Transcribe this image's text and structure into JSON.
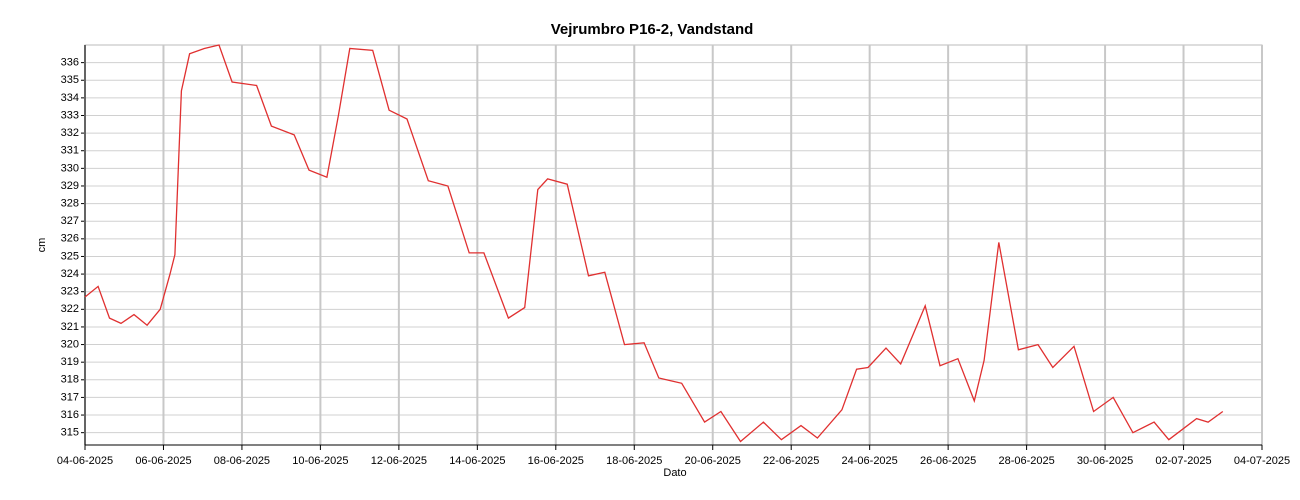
{
  "chart_data": {
    "type": "line",
    "title": "Vejrumbro P16-2, Vandstand",
    "x_label": "Dato",
    "y_label": "cm",
    "x": [
      "2025-06-04T00:00",
      "2025-06-04T08:00",
      "2025-06-04T15:00",
      "2025-06-04T22:00",
      "2025-06-05T06:00",
      "2025-06-05T14:00",
      "2025-06-05T22:00",
      "2025-06-06T04:00",
      "2025-06-06T07:00",
      "2025-06-06T11:00",
      "2025-06-06T16:00",
      "2025-06-07T01:00",
      "2025-06-07T10:00",
      "2025-06-07T18:00",
      "2025-06-08T09:00",
      "2025-06-08T18:00",
      "2025-06-09T08:00",
      "2025-06-09T17:00",
      "2025-06-10T04:00",
      "2025-06-10T11:00",
      "2025-06-10T18:00",
      "2025-06-11T08:00",
      "2025-06-11T18:00",
      "2025-06-12T05:00",
      "2025-06-12T18:00",
      "2025-06-13T06:00",
      "2025-06-13T19:00",
      "2025-06-14T04:00",
      "2025-06-14T19:00",
      "2025-06-15T05:00",
      "2025-06-15T13:00",
      "2025-06-15T19:00",
      "2025-06-16T07:00",
      "2025-06-16T20:00",
      "2025-06-17T06:00",
      "2025-06-17T18:00",
      "2025-06-18T06:00",
      "2025-06-18T15:00",
      "2025-06-19T05:00",
      "2025-06-19T19:00",
      "2025-06-20T05:00",
      "2025-06-20T17:00",
      "2025-06-21T07:00",
      "2025-06-21T18:00",
      "2025-06-22T06:00",
      "2025-06-22T16:00",
      "2025-06-23T07:00",
      "2025-06-23T16:00",
      "2025-06-23T23:00",
      "2025-06-24T10:00",
      "2025-06-24T19:00",
      "2025-06-25T10:00",
      "2025-06-25T19:00",
      "2025-06-26T06:00",
      "2025-06-26T16:00",
      "2025-06-26T22:00",
      "2025-06-27T07:00",
      "2025-06-27T19:00",
      "2025-06-28T07:00",
      "2025-06-28T16:00",
      "2025-06-29T05:00",
      "2025-06-29T17:00",
      "2025-06-30T05:00",
      "2025-06-30T17:00",
      "2025-07-01T06:00",
      "2025-07-01T15:00",
      "2025-07-02T08:00",
      "2025-07-02T15:00",
      "2025-07-03T00:00"
    ],
    "series": [
      {
        "name": "Vandstand",
        "color": "#e03030",
        "values": [
          322.7,
          323.3,
          321.5,
          321.2,
          321.7,
          321.1,
          322.0,
          324.0,
          325.1,
          334.4,
          336.5,
          336.8,
          337.0,
          334.9,
          334.7,
          332.4,
          331.9,
          329.9,
          329.5,
          333.0,
          336.8,
          336.7,
          333.3,
          332.8,
          329.3,
          329.0,
          325.2,
          325.2,
          321.5,
          322.1,
          328.8,
          329.4,
          329.1,
          323.9,
          324.1,
          320.0,
          320.1,
          318.1,
          317.8,
          315.6,
          316.2,
          314.5,
          315.6,
          314.6,
          315.4,
          314.7,
          316.3,
          318.6,
          318.7,
          319.8,
          318.9,
          322.2,
          318.8,
          319.2,
          316.8,
          319.1,
          325.8,
          319.7,
          320.0,
          318.7,
          319.9,
          316.2,
          317.0,
          315.0,
          315.6,
          314.6,
          315.8,
          315.6,
          316.2
        ]
      }
    ],
    "xlim": [
      "2025-06-04",
      "2025-07-04"
    ],
    "xticks": [
      {
        "value": "2025-06-04",
        "label": "04-06-2025"
      },
      {
        "value": "2025-06-06",
        "label": "06-06-2025"
      },
      {
        "value": "2025-06-08",
        "label": "08-06-2025"
      },
      {
        "value": "2025-06-10",
        "label": "10-06-2025"
      },
      {
        "value": "2025-06-12",
        "label": "12-06-2025"
      },
      {
        "value": "2025-06-14",
        "label": "14-06-2025"
      },
      {
        "value": "2025-06-16",
        "label": "16-06-2025"
      },
      {
        "value": "2025-06-18",
        "label": "18-06-2025"
      },
      {
        "value": "2025-06-20",
        "label": "20-06-2025"
      },
      {
        "value": "2025-06-22",
        "label": "22-06-2025"
      },
      {
        "value": "2025-06-24",
        "label": "24-06-2025"
      },
      {
        "value": "2025-06-26",
        "label": "26-06-2025"
      },
      {
        "value": "2025-06-28",
        "label": "28-06-2025"
      },
      {
        "value": "2025-06-30",
        "label": "30-06-2025"
      },
      {
        "value": "2025-07-02",
        "label": "02-07-2025"
      },
      {
        "value": "2025-07-04",
        "label": "04-07-2025"
      }
    ],
    "ylim": [
      314.3,
      337
    ],
    "yticks": [
      315,
      316,
      317,
      318,
      319,
      320,
      321,
      322,
      323,
      324,
      325,
      326,
      327,
      328,
      329,
      330,
      331,
      332,
      333,
      334,
      335,
      336
    ],
    "grid": true
  }
}
